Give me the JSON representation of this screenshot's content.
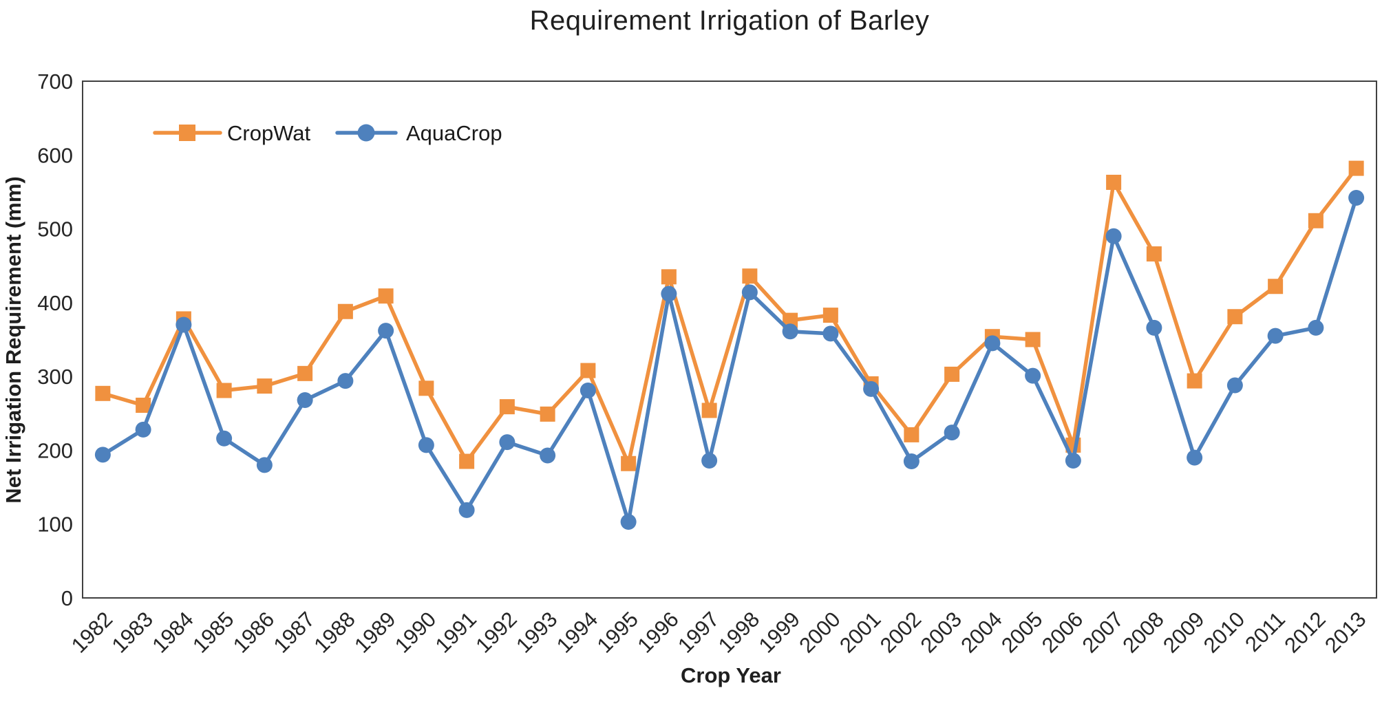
{
  "title": "Requirement Irrigation of Barley",
  "chart_data": {
    "type": "line",
    "title": "Requirement Irrigation of Barley",
    "xlabel": "Crop Year",
    "ylabel": "Net Irrigation Requirement (mm)",
    "ylim": [
      0,
      700
    ],
    "yticks": [
      0,
      100,
      200,
      300,
      400,
      500,
      600,
      700
    ],
    "grid": false,
    "legend_position": "top-left-inside",
    "categories": [
      "1982",
      "1983",
      "1984",
      "1985",
      "1986",
      "1987",
      "1988",
      "1989",
      "1990",
      "1991",
      "1992",
      "1993",
      "1994",
      "1995",
      "1996",
      "1997",
      "1998",
      "1999",
      "2000",
      "2001",
      "2002",
      "2003",
      "2004",
      "2005",
      "2006",
      "2007",
      "2008",
      "2009",
      "2010",
      "2011",
      "2012",
      "2013"
    ],
    "series": [
      {
        "name": "CropWat",
        "color": "#F0913F",
        "marker": "square",
        "values": [
          277,
          261,
          378,
          281,
          287,
          304,
          388,
          409,
          284,
          185,
          259,
          249,
          308,
          182,
          435,
          254,
          436,
          376,
          383,
          290,
          221,
          303,
          354,
          350,
          207,
          563,
          466,
          294,
          381,
          422,
          511,
          582
        ]
      },
      {
        "name": "AquaCrop",
        "color": "#4E81BD",
        "marker": "circle",
        "values": [
          194,
          228,
          370,
          216,
          180,
          268,
          294,
          362,
          207,
          119,
          211,
          193,
          281,
          103,
          412,
          186,
          414,
          361,
          358,
          283,
          185,
          224,
          345,
          301,
          186,
          490,
          366,
          190,
          288,
          355,
          366,
          542
        ]
      }
    ],
    "axis_color": "#404040",
    "text_color": "#262626"
  }
}
